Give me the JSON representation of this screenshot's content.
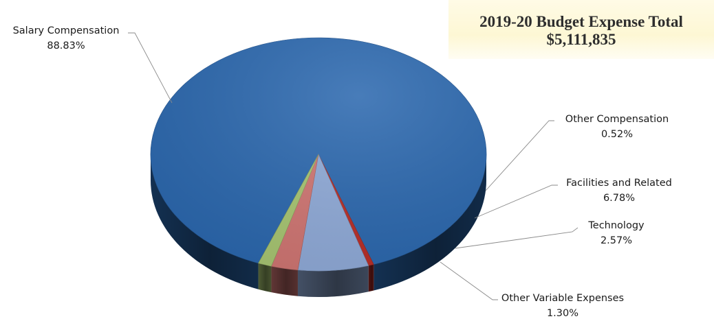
{
  "total_box": {
    "title": "2019-20 Budget Expense Total",
    "amount": "$5,111,835"
  },
  "chart_data": {
    "type": "pie",
    "style": "3d",
    "slices": [
      {
        "label": "Salary Compensation",
        "value_label": "88.83%",
        "value": 88.83,
        "color": "#2a67ae"
      },
      {
        "label": "Other Compensation",
        "value_label": "0.52%",
        "value": 0.52,
        "color": "#b82c26"
      },
      {
        "label": "Facilities and Related",
        "value_label": "6.78%",
        "value": 6.78,
        "color": "#8faad8"
      },
      {
        "label": "Technology",
        "value_label": "2.57%",
        "value": 2.57,
        "color": "#d07572"
      },
      {
        "label": "Other Variable Expenses",
        "value_label": "1.30%",
        "value": 1.3,
        "color": "#a7c571"
      }
    ]
  }
}
